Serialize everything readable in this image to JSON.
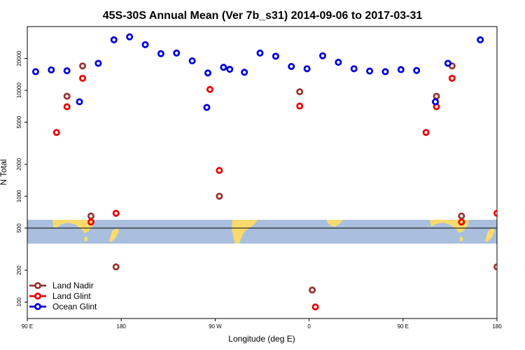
{
  "chart_data": {
    "type": "scatter",
    "title": "45S-30S Annual Mean (Ver 7b_s31)   2014-09-06 to 2017-03-31",
    "xlabel": "Longitude (deg E)",
    "ylabel": "N Total",
    "y_scale": "log",
    "xlim": [
      90,
      540
    ],
    "ylim": [
      70,
      40000
    ],
    "x_ticks": [
      {
        "value": 90,
        "label": "90 E"
      },
      {
        "value": 180,
        "label": "180"
      },
      {
        "value": 270,
        "label": "90 W"
      },
      {
        "value": 360,
        "label": "0"
      },
      {
        "value": 450,
        "label": "90 E"
      },
      {
        "value": 540,
        "label": "180"
      }
    ],
    "y_ticks": [
      {
        "value": 100,
        "label": "100"
      },
      {
        "value": 200,
        "label": "200"
      },
      {
        "value": 500,
        "label": "500"
      },
      {
        "value": 1000,
        "label": "1000"
      },
      {
        "value": 2000,
        "label": "2000"
      },
      {
        "value": 5000,
        "label": "5000"
      },
      {
        "value": 10000,
        "label": "10000"
      },
      {
        "value": 20000,
        "label": "20000"
      }
    ],
    "reference_line": 500,
    "legend_position": "bottom-left",
    "series": [
      {
        "name": "Land Nadir",
        "color": "#993333",
        "points": [
          [
            128,
            8800
          ],
          [
            143,
            17000
          ],
          [
            151,
            650
          ],
          [
            351,
            9700
          ],
          [
            482,
            8800
          ],
          [
            497,
            17000
          ],
          [
            506,
            650
          ],
          [
            274,
            1000
          ],
          [
            175,
            215
          ],
          [
            363,
            130
          ],
          [
            540,
            215
          ]
        ]
      },
      {
        "name": "Land Glint",
        "color": "#ee0000",
        "points": [
          [
            118,
            4000
          ],
          [
            128,
            7000
          ],
          [
            143,
            13000
          ],
          [
            151,
            570
          ],
          [
            175,
            690
          ],
          [
            265,
            10200
          ],
          [
            274,
            1750
          ],
          [
            351,
            7100
          ],
          [
            366,
            90
          ],
          [
            472,
            4000
          ],
          [
            482,
            7000
          ],
          [
            497,
            13000
          ],
          [
            506,
            570
          ],
          [
            540,
            690
          ]
        ]
      },
      {
        "name": "Ocean Glint",
        "color": "#0000dd",
        "points": [
          [
            98,
            15000
          ],
          [
            113,
            15600
          ],
          [
            128,
            15300
          ],
          [
            140,
            7800
          ],
          [
            158,
            18000
          ],
          [
            173,
            30000
          ],
          [
            188,
            32000
          ],
          [
            203,
            27000
          ],
          [
            218,
            22200
          ],
          [
            233,
            22500
          ],
          [
            248,
            19000
          ],
          [
            263,
            14600
          ],
          [
            278,
            16500
          ],
          [
            262,
            6900
          ],
          [
            284,
            15800
          ],
          [
            298,
            14800
          ],
          [
            313,
            22500
          ],
          [
            328,
            21000
          ],
          [
            343,
            16800
          ],
          [
            358,
            16000
          ],
          [
            373,
            21200
          ],
          [
            388,
            18400
          ],
          [
            403,
            16000
          ],
          [
            418,
            15200
          ],
          [
            433,
            15000
          ],
          [
            448,
            15700
          ],
          [
            463,
            15400
          ],
          [
            481,
            7800
          ],
          [
            493,
            18000
          ],
          [
            524,
            30000
          ]
        ]
      }
    ]
  }
}
